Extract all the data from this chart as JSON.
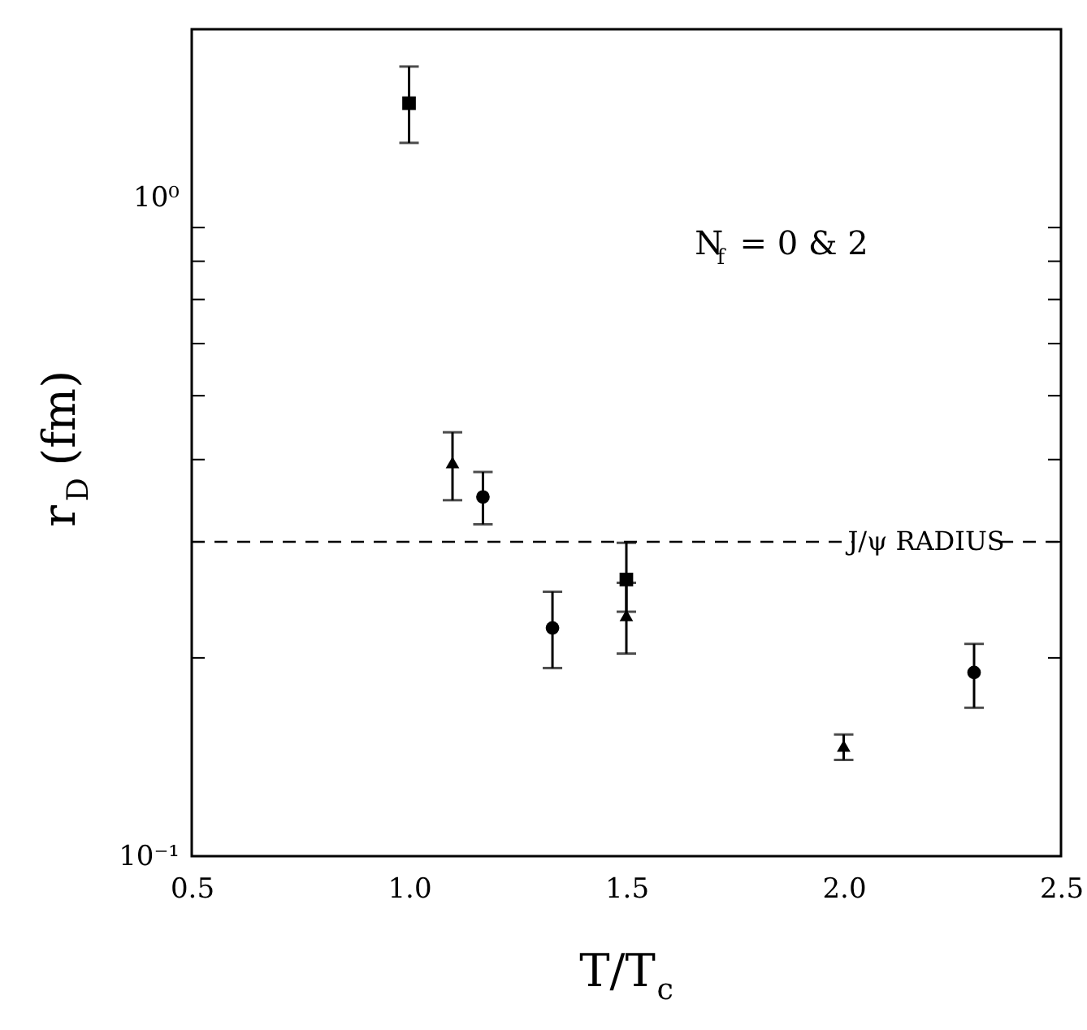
{
  "chart_data": {
    "type": "scatter",
    "xlabel": "T/T$_{c}$",
    "ylabel": "r$_{D}$ (fm)",
    "annotations": [
      "N$_{f}$ = 0 & 2"
    ],
    "log": "y",
    "grid": false,
    "xlim": [
      0.5,
      2.5
    ],
    "xticks": [
      0.5,
      {
        "value": 1,
        "label": "1.0"
      },
      1.5,
      {
        "value": 2,
        "label": "2.0"
      },
      2.5
    ],
    "ylim": [
      0.1,
      1.8
    ],
    "yticks": [
      {
        "value": 0.1,
        "label": "10⁻¹"
      },
      {
        "value": 0.2,
        "label": null
      },
      {
        "value": 0.3,
        "label": null
      },
      {
        "value": 0.4,
        "label": null
      },
      {
        "value": 0.5,
        "label": null
      },
      {
        "value": 0.6,
        "label": null
      },
      {
        "value": 0.7,
        "label": null
      },
      {
        "value": 0.8,
        "label": null
      },
      {
        "value": 0.9,
        "label": null
      },
      {
        "value": 1,
        "label": "10⁰"
      }
    ],
    "ref_lines": [
      {
        "axis": "y",
        "value": 0.3,
        "label": "J/ψ RADIUS",
        "line_style": "dashed",
        "color": "#000000"
      }
    ],
    "series": [
      {
        "color": "#000000",
        "marker": "square",
        "x": [
          1.0,
          1.5
        ],
        "values": [
          1.39,
          0.263
        ],
        "errors": [
          [
            1.21,
            1.58
          ],
          [
            0.235,
            0.299
          ]
        ]
      },
      {
        "color": "#000000",
        "marker": "triangle",
        "x": [
          1.1,
          1.5,
          2.0
        ],
        "values": [
          0.396,
          0.232,
          0.147
        ],
        "errors": [
          [
            0.347,
            0.44
          ],
          [
            0.203,
            0.26
          ],
          [
            0.14,
            0.153
          ]
        ]
      },
      {
        "color": "#000000",
        "marker": "circle",
        "x": [
          1.17,
          1.33,
          2.3
        ],
        "values": [
          0.351,
          0.222,
          0.19
        ],
        "errors": [
          [
            0.319,
            0.383
          ],
          [
            0.193,
            0.252
          ],
          [
            0.168,
            0.21
          ]
        ]
      }
    ]
  }
}
